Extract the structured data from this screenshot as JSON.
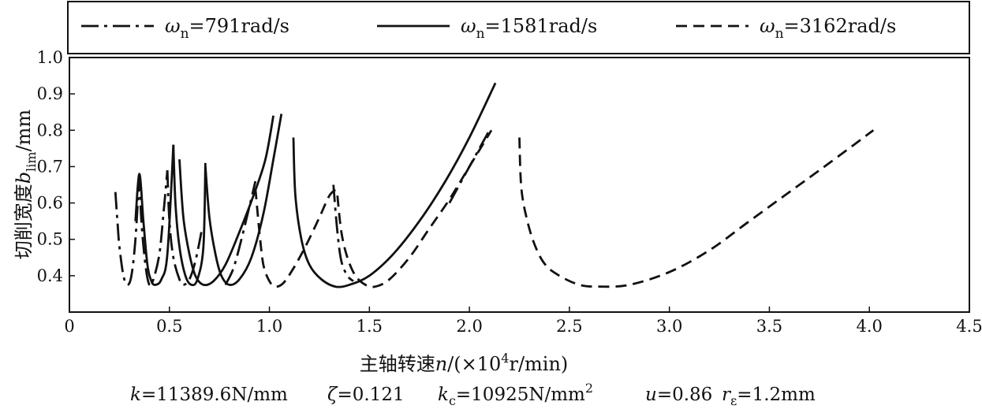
{
  "chart_data": {
    "type": "line",
    "xlabel": {
      "prefix": "主轴转速",
      "var": "n",
      "unit_pre": "/(×10",
      "unit_exp": "4",
      "unit_post": "r/min)"
    },
    "ylabel": {
      "prefix": "切削宽度",
      "var": "b",
      "sub": "lim",
      "unit": "/mm"
    },
    "xlim": [
      0,
      4.5
    ],
    "ylim": [
      0.3,
      1.0
    ],
    "x_ticks": [
      "0",
      "0.5",
      "1.0",
      "1.5",
      "2.0",
      "2.5",
      "3.0",
      "3.5",
      "4.0",
      "4.5"
    ],
    "y_ticks": [
      "0.4",
      "0.5",
      "0.6",
      "0.7",
      "0.8",
      "0.9",
      "1.0"
    ],
    "grid": false,
    "legend_position": "top",
    "series": [
      {
        "name": "ωn=791rad/s",
        "legend": {
          "sym": "ω",
          "sub": "n",
          "rest": "=791rad/s"
        },
        "style": "dashdot",
        "color": "#111111",
        "segments": [
          [
            [
              0.23,
              0.63
            ],
            [
              0.24,
              0.55
            ],
            [
              0.25,
              0.48
            ],
            [
              0.27,
              0.4
            ],
            [
              0.29,
              0.375
            ],
            [
              0.31,
              0.4
            ],
            [
              0.33,
              0.5
            ],
            [
              0.35,
              0.68
            ]
          ],
          [
            [
              0.35,
              0.68
            ],
            [
              0.36,
              0.55
            ],
            [
              0.38,
              0.43
            ],
            [
              0.4,
              0.375
            ],
            [
              0.42,
              0.39
            ],
            [
              0.45,
              0.46
            ],
            [
              0.47,
              0.57
            ],
            [
              0.49,
              0.69
            ]
          ],
          [
            [
              0.49,
              0.69
            ],
            [
              0.5,
              0.55
            ],
            [
              0.52,
              0.45
            ],
            [
              0.55,
              0.39
            ],
            [
              0.57,
              0.375
            ],
            [
              0.6,
              0.39
            ],
            [
              0.63,
              0.44
            ],
            [
              0.66,
              0.52
            ]
          ],
          [
            [
              0.78,
              0.375
            ],
            [
              0.82,
              0.42
            ],
            [
              0.86,
              0.5
            ],
            [
              0.9,
              0.59
            ],
            [
              0.93,
              0.66
            ]
          ],
          [
            [
              1.32,
              0.65
            ],
            [
              1.34,
              0.52
            ],
            [
              1.36,
              0.44
            ],
            [
              1.39,
              0.4
            ],
            [
              1.42,
              0.385
            ]
          ],
          [
            [
              1.9,
              0.6
            ],
            [
              1.97,
              0.67
            ],
            [
              2.04,
              0.74
            ],
            [
              2.1,
              0.8
            ]
          ]
        ]
      },
      {
        "name": "ωn=1581rad/s",
        "legend": {
          "sym": "ω",
          "sub": "n",
          "rest": "=1581rad/s"
        },
        "style": "solid",
        "color": "#111111",
        "segments": [
          [
            [
              0.33,
              0.55
            ],
            [
              0.35,
              0.68
            ],
            [
              0.37,
              0.55
            ],
            [
              0.39,
              0.43
            ],
            [
              0.41,
              0.385
            ],
            [
              0.43,
              0.375
            ],
            [
              0.46,
              0.39
            ],
            [
              0.49,
              0.46
            ],
            [
              0.52,
              0.76
            ]
          ],
          [
            [
              0.52,
              0.76
            ],
            [
              0.53,
              0.6
            ],
            [
              0.55,
              0.48
            ],
            [
              0.58,
              0.4
            ],
            [
              0.61,
              0.375
            ],
            [
              0.64,
              0.39
            ],
            [
              0.67,
              0.48
            ],
            [
              0.68,
              0.71
            ]
          ],
          [
            [
              0.55,
              0.72
            ],
            [
              0.57,
              0.56
            ],
            [
              0.6,
              0.46
            ],
            [
              0.63,
              0.4
            ],
            [
              0.67,
              0.375
            ],
            [
              0.72,
              0.385
            ],
            [
              0.78,
              0.43
            ],
            [
              0.85,
              0.52
            ],
            [
              0.92,
              0.62
            ],
            [
              0.98,
              0.72
            ],
            [
              1.02,
              0.84
            ]
          ],
          [
            [
              0.68,
              0.7
            ],
            [
              0.7,
              0.56
            ],
            [
              0.73,
              0.46
            ],
            [
              0.76,
              0.4
            ],
            [
              0.8,
              0.375
            ],
            [
              0.85,
              0.39
            ],
            [
              0.91,
              0.45
            ],
            [
              0.97,
              0.57
            ],
            [
              1.02,
              0.72
            ],
            [
              1.06,
              0.845
            ]
          ],
          [
            [
              1.12,
              0.78
            ],
            [
              1.13,
              0.62
            ],
            [
              1.16,
              0.5
            ],
            [
              1.2,
              0.43
            ],
            [
              1.26,
              0.39
            ],
            [
              1.33,
              0.37
            ],
            [
              1.4,
              0.375
            ],
            [
              1.5,
              0.4
            ],
            [
              1.62,
              0.46
            ],
            [
              1.75,
              0.55
            ],
            [
              1.88,
              0.66
            ],
            [
              2.0,
              0.78
            ],
            [
              2.13,
              0.93
            ]
          ]
        ]
      },
      {
        "name": "ωn=3162rad/s",
        "legend": {
          "sym": "ω",
          "sub": "n",
          "rest": "=3162rad/s"
        },
        "style": "dashed",
        "color": "#111111",
        "segments": [
          [
            [
              0.93,
              0.64
            ],
            [
              0.95,
              0.52
            ],
            [
              0.97,
              0.43
            ],
            [
              1.0,
              0.385
            ],
            [
              1.03,
              0.37
            ],
            [
              1.07,
              0.38
            ],
            [
              1.12,
              0.42
            ],
            [
              1.18,
              0.48
            ],
            [
              1.25,
              0.56
            ],
            [
              1.3,
              0.62
            ],
            [
              1.34,
              0.64
            ]
          ],
          [
            [
              1.34,
              0.62
            ],
            [
              1.36,
              0.52
            ],
            [
              1.39,
              0.45
            ],
            [
              1.43,
              0.4
            ],
            [
              1.48,
              0.375
            ],
            [
              1.53,
              0.37
            ],
            [
              1.6,
              0.39
            ],
            [
              1.7,
              0.45
            ],
            [
              1.8,
              0.53
            ],
            [
              1.9,
              0.61
            ],
            [
              2.0,
              0.7
            ],
            [
              2.11,
              0.8
            ]
          ],
          [
            [
              2.25,
              0.78
            ],
            [
              2.26,
              0.64
            ],
            [
              2.29,
              0.55
            ],
            [
              2.33,
              0.48
            ],
            [
              2.38,
              0.43
            ],
            [
              2.45,
              0.4
            ],
            [
              2.55,
              0.375
            ],
            [
              2.65,
              0.37
            ],
            [
              2.8,
              0.375
            ],
            [
              3.0,
              0.41
            ],
            [
              3.2,
              0.47
            ],
            [
              3.4,
              0.55
            ],
            [
              3.6,
              0.63
            ],
            [
              3.8,
              0.71
            ],
            [
              4.02,
              0.8
            ]
          ]
        ]
      }
    ],
    "parameters": [
      {
        "var": "k",
        "sub": "",
        "sup": "",
        "rest": "=11389.6N/mm"
      },
      {
        "var": "ζ",
        "sub": "",
        "sup": "",
        "rest": "=0.121"
      },
      {
        "var": "k",
        "sub": "c",
        "sup": "2",
        "rest": "=10925N/mm"
      },
      {
        "var": "u",
        "sub": "",
        "sup": "",
        "rest": "=0.86"
      },
      {
        "var": "r",
        "sub": "ε",
        "sup": "",
        "rest": "=1.2mm"
      }
    ]
  }
}
